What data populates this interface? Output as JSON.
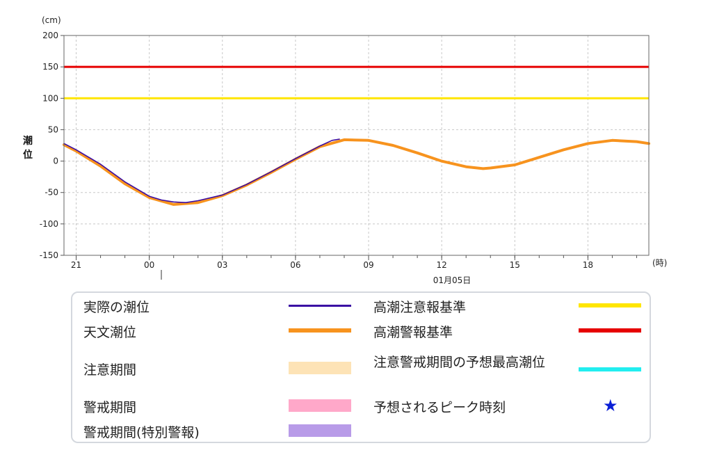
{
  "chart_data": {
    "type": "line",
    "y_unit": "(cm)",
    "x_unit": "(時)",
    "ylabel": "潮位",
    "date_label": "01月05日",
    "ylim": [
      -150,
      200
    ],
    "y_ticks": [
      200,
      150,
      100,
      50,
      0,
      -50,
      -100,
      -150
    ],
    "x_range_hours": [
      -3.5,
      20.5
    ],
    "x_ticks": [
      {
        "hour": -3,
        "label": "21"
      },
      {
        "hour": 0,
        "label": "00"
      },
      {
        "hour": 3,
        "label": "03"
      },
      {
        "hour": 6,
        "label": "06"
      },
      {
        "hour": 9,
        "label": "09"
      },
      {
        "hour": 12,
        "label": "12"
      },
      {
        "hour": 15,
        "label": "15"
      },
      {
        "hour": 18,
        "label": "18"
      }
    ],
    "thresholds": [
      {
        "name": "高潮警報基準",
        "value": 150,
        "color": "#e60000"
      },
      {
        "name": "高潮注意報基準",
        "value": 100,
        "color": "#ffe600"
      }
    ],
    "series": [
      {
        "name": "天文潮位",
        "color": "#f7931e",
        "x": [
          -3.5,
          -3,
          -2,
          -1,
          0,
          1,
          2,
          3,
          4,
          5,
          6,
          7,
          8,
          9,
          10,
          11,
          12,
          13,
          13.7,
          14,
          15,
          16,
          17,
          18,
          19,
          20,
          20.5
        ],
        "y": [
          26,
          16,
          -8,
          -36,
          -58,
          -69,
          -66,
          -55,
          -38,
          -18,
          3,
          23,
          34,
          33,
          25,
          13,
          0,
          -9,
          -12,
          -11,
          -6,
          6,
          18,
          28,
          33,
          31,
          28
        ]
      },
      {
        "name": "実際の潮位",
        "color": "#3a0ca3",
        "x": [
          -3.5,
          -3,
          -2,
          -1,
          0,
          0.5,
          1,
          1.5,
          2,
          3,
          4,
          5,
          6,
          7,
          7.5,
          7.8
        ],
        "y": [
          28,
          18,
          -5,
          -33,
          -56,
          -62,
          -65,
          -66,
          -63,
          -54,
          -37,
          -17,
          4,
          24,
          33,
          35
        ]
      }
    ],
    "legend": [
      {
        "label": "実際の潮位",
        "kind": "line",
        "color": "#3a0ca3"
      },
      {
        "label": "天文潮位",
        "kind": "thick",
        "color": "#f7931e"
      },
      {
        "label": "注意期間",
        "kind": "box",
        "color": "#fde3b6"
      },
      {
        "label": "警戒期間",
        "kind": "box",
        "color": "#ffa8c9"
      },
      {
        "label": "警戒期間(特別警報)",
        "kind": "box",
        "color": "#b89be8"
      },
      {
        "label": "高潮注意報基準",
        "kind": "thick",
        "color": "#ffe600"
      },
      {
        "label": "高潮警報基準",
        "kind": "thick",
        "color": "#e60000"
      },
      {
        "label": "注意警戒期間の予想最高潮位",
        "kind": "thick",
        "color": "#22eef0"
      },
      {
        "label": "予想されるピーク時刻",
        "kind": "star",
        "color": "#0a1fd6",
        "symbol": "★"
      }
    ]
  }
}
